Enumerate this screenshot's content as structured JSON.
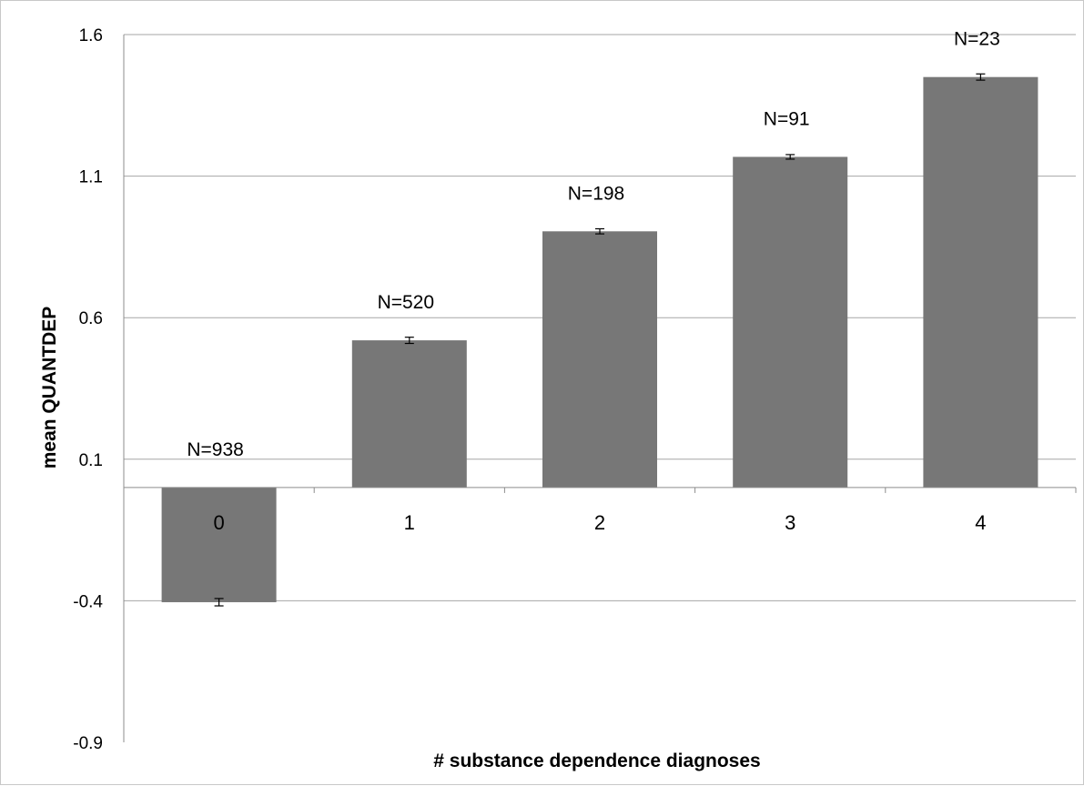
{
  "chart_data": {
    "type": "bar",
    "categories": [
      "0",
      "1",
      "2",
      "3",
      "4"
    ],
    "values": [
      -0.405,
      0.52,
      0.905,
      1.168,
      1.45
    ],
    "errors": [
      0.013,
      0.011,
      0.009,
      0.008,
      0.011
    ],
    "labels": [
      "N=938",
      "N=520",
      "N=198",
      "N=91",
      "N=23"
    ],
    "title": "",
    "xlabel": "# substance dependence diagnoses",
    "ylabel": "mean QUANTDEP",
    "ylim": [
      -0.9,
      1.6
    ],
    "yticks": [
      "1.6",
      "1.1",
      "0.6",
      "0.1",
      "-0.4",
      "-0.9"
    ],
    "ytick_values": [
      1.6,
      1.1,
      0.6,
      0.1,
      -0.4,
      -0.9
    ],
    "grid": true,
    "legend": "none",
    "bar_color": "#777777",
    "gridline_color": "#a6a6a6"
  }
}
